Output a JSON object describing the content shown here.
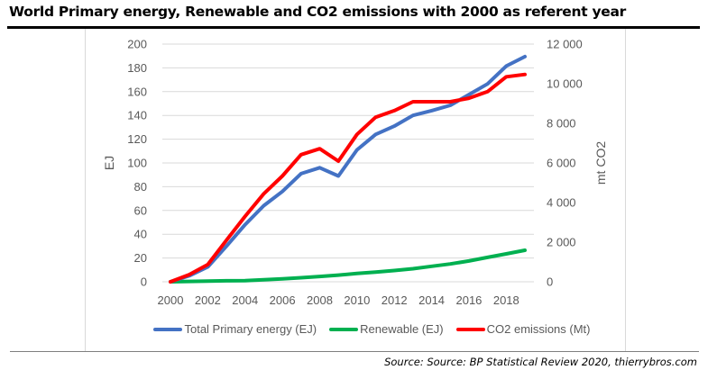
{
  "title": "World Primary energy, Renewable and CO2 emissions with 2000 as referent year",
  "source": "Source: Source: BP Statistical Review 2020, thierrybros.com",
  "chart_data": {
    "type": "line",
    "title": "World Primary energy, Renewable and CO2 emissions with 2000 as referent year",
    "x": [
      2000,
      2001,
      2002,
      2003,
      2004,
      2005,
      2006,
      2007,
      2008,
      2009,
      2010,
      2011,
      2012,
      2013,
      2014,
      2015,
      2016,
      2017,
      2018,
      2019
    ],
    "x_tick_labels": [
      "2000",
      "2002",
      "2004",
      "2006",
      "2008",
      "2010",
      "2012",
      "2014",
      "2016",
      "2018"
    ],
    "xlim": [
      2000,
      2019
    ],
    "ylabel": "EJ",
    "ylim": [
      0,
      200
    ],
    "y_tick_labels": [
      "0",
      "20",
      "40",
      "60",
      "80",
      "100",
      "120",
      "140",
      "160",
      "180",
      "200"
    ],
    "y2label": "mt CO2",
    "y2lim": [
      0,
      12000
    ],
    "y2_tick_labels": [
      "0",
      "2 000",
      "4 000",
      "6 000",
      "8 000",
      "10 000",
      "12 000"
    ],
    "grid": true,
    "legend_position": "bottom",
    "series": [
      {
        "name": "Total Primary energy (EJ)",
        "axis": "left",
        "color": "#4472c4",
        "values": [
          0,
          5,
          12.5,
          30,
          48,
          64,
          76,
          91,
          96,
          89,
          111,
          124,
          131,
          140,
          144,
          148.5,
          157.5,
          166.5,
          181.5,
          189.5
        ]
      },
      {
        "name": "Renewable (EJ)",
        "axis": "left",
        "color": "#00b050",
        "values": [
          0,
          0.3,
          0.5,
          0.8,
          1,
          1.7,
          2.5,
          3.4,
          4.5,
          5.6,
          7,
          8.2,
          9.5,
          11,
          13,
          15,
          17.5,
          20.5,
          23.5,
          26.5
        ]
      },
      {
        "name": "CO2 emissions (Mt)",
        "axis": "right",
        "color": "#ff0000",
        "values": [
          0,
          360,
          870,
          2100,
          3300,
          4440,
          5340,
          6420,
          6720,
          6090,
          7440,
          8310,
          8640,
          9090,
          9090,
          9090,
          9270,
          9600,
          10350,
          10470
        ]
      }
    ]
  }
}
